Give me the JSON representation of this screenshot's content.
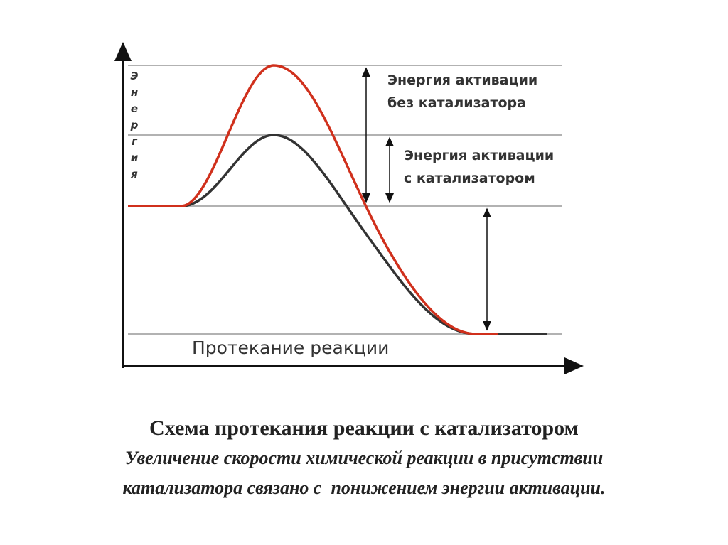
{
  "diagram": {
    "y_axis_label": "Энергия",
    "x_axis_label": "Протекание реакции",
    "annotations": [
      {
        "lines": [
          "Энергия активации",
          "без катализатора"
        ]
      },
      {
        "lines": [
          "Энергия активации",
          "с катализатором"
        ]
      }
    ]
  },
  "caption": {
    "title": "Схема протекания реакции с катализатором",
    "lines": [
      "Увеличение скорости химической реакции в присутствии",
      "катализатора связано с  понижением энергии активации."
    ]
  }
}
